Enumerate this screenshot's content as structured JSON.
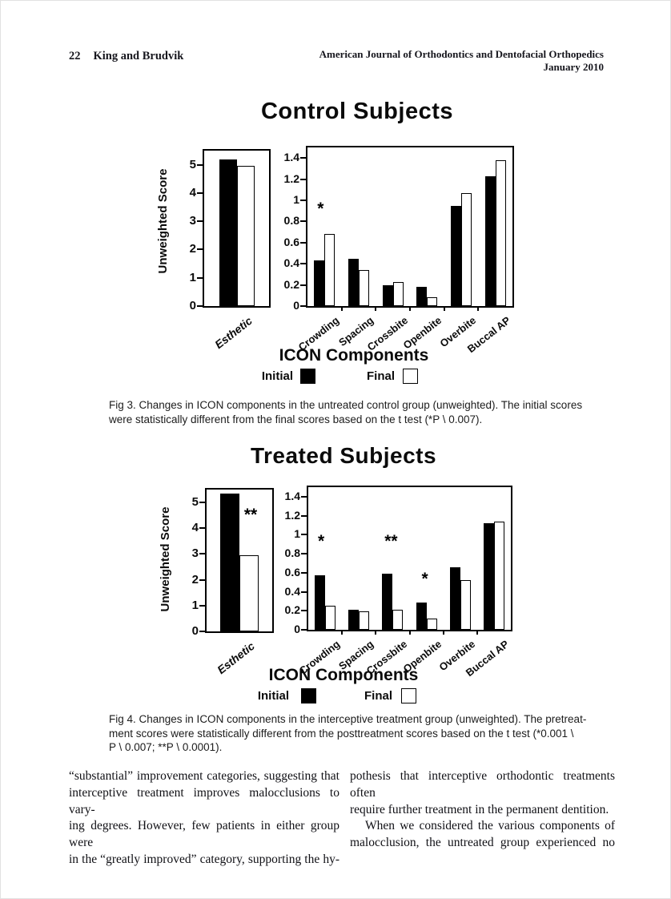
{
  "header": {
    "page_number": "22",
    "authors": "King and Brudvik",
    "journal_line1": "American Journal of Orthodontics and Dentofacial Orthopedics",
    "journal_line2": "January 2010"
  },
  "figures": [
    {
      "title": "Control Subjects",
      "xlabel": "ICON Components",
      "legend": {
        "initial": "Initial",
        "final": "Final"
      },
      "caption_lines": [
        "Fig 3.  Changes in ICON components in the untreated control group (unweighted). The initial scores",
        "were statistically different from the final scores based on the t test (*P \\ 0.007)."
      ]
    },
    {
      "title": "Treated Subjects",
      "xlabel": "ICON Components",
      "legend": {
        "initial": "Initial",
        "final": "Final"
      },
      "caption_lines": [
        "Fig 4.  Changes in ICON components in the interceptive treatment group (unweighted). The pretreat-",
        "ment scores were statistically different from the posttreatment scores based on the t test (*0.001 \\",
        "P \\ 0.007; **P \\ 0.0001)."
      ]
    }
  ],
  "chart_data": [
    {
      "type": "bar",
      "title": "Control Subjects - Esthetic (unweighted)",
      "categories": [
        "Esthetic"
      ],
      "series": [
        {
          "name": "Initial",
          "values": [
            5.2
          ]
        },
        {
          "name": "Final",
          "values": [
            4.95
          ]
        }
      ],
      "ylabel": "Unweighted Score",
      "xlabel": "",
      "ylim": [
        0,
        5.5
      ],
      "yticks": [
        0,
        1,
        2,
        3,
        4,
        5
      ],
      "annotations": []
    },
    {
      "type": "bar",
      "title": "Control Subjects - ICON Components (unweighted)",
      "categories": [
        "Crowding",
        "Spacing",
        "Crossbite",
        "Openbite",
        "Overbite",
        "Buccal AP"
      ],
      "series": [
        {
          "name": "Initial",
          "values": [
            0.43,
            0.45,
            0.2,
            0.18,
            0.95,
            1.23
          ]
        },
        {
          "name": "Final",
          "values": [
            0.68,
            0.34,
            0.23,
            0.08,
            1.07,
            1.38
          ]
        }
      ],
      "ylabel": "",
      "xlabel": "ICON Components",
      "ylim": [
        0,
        1.5
      ],
      "yticks": [
        0,
        0.2,
        0.4,
        0.6,
        0.8,
        1,
        1.2,
        1.4
      ],
      "annotations": [
        {
          "category_index": 0,
          "text": "*",
          "y": 0.92,
          "dx": -5
        }
      ]
    },
    {
      "type": "bar",
      "title": "Treated Subjects - Esthetic (unweighted)",
      "categories": [
        "Esthetic"
      ],
      "series": [
        {
          "name": "Initial",
          "values": [
            5.35
          ]
        },
        {
          "name": "Final",
          "values": [
            2.95
          ]
        }
      ],
      "ylabel": "Unweighted Score",
      "xlabel": "",
      "ylim": [
        0,
        5.5
      ],
      "yticks": [
        0,
        1,
        2,
        3,
        4,
        5
      ],
      "annotations": [
        {
          "category_index": 0,
          "text": "**",
          "y": 4.5,
          "dx": 14
        }
      ]
    },
    {
      "type": "bar",
      "title": "Treated Subjects - ICON Components (unweighted)",
      "categories": [
        "Crowding",
        "Spacing",
        "Crossbite",
        "Openbite",
        "Overbite",
        "Buccal AP"
      ],
      "series": [
        {
          "name": "Initial",
          "values": [
            0.57,
            0.21,
            0.59,
            0.29,
            0.66,
            1.12
          ]
        },
        {
          "name": "Final",
          "values": [
            0.25,
            0.19,
            0.21,
            0.12,
            0.52,
            1.14
          ]
        }
      ],
      "ylabel": "",
      "xlabel": "ICON Components",
      "ylim": [
        0,
        1.5
      ],
      "yticks": [
        0,
        0.2,
        0.4,
        0.6,
        0.8,
        1,
        1.2,
        1.4
      ],
      "annotations": [
        {
          "category_index": 0,
          "text": "*",
          "y": 0.93,
          "dx": -5
        },
        {
          "category_index": 2,
          "text": "**",
          "y": 0.93,
          "dx": -2
        },
        {
          "category_index": 3,
          "text": "*",
          "y": 0.53,
          "dx": -2
        }
      ]
    }
  ],
  "colors": {
    "bar_initial": "#000000",
    "bar_final": "#ffffff",
    "axis": "#000000"
  },
  "body_text": {
    "left_column_lines": [
      "“substantial” improvement categories, suggesting that",
      "interceptive treatment improves malocclusions to vary-",
      "ing degrees. However, few patients in either group were",
      "in the “greatly improved” category, supporting the hy-"
    ],
    "right_column_lines": [
      "pothesis that interceptive orthodontic treatments often",
      "require further treatment in the permanent dentition.",
      "When we considered the various components of",
      "malocclusion, the untreated group experienced no"
    ]
  }
}
